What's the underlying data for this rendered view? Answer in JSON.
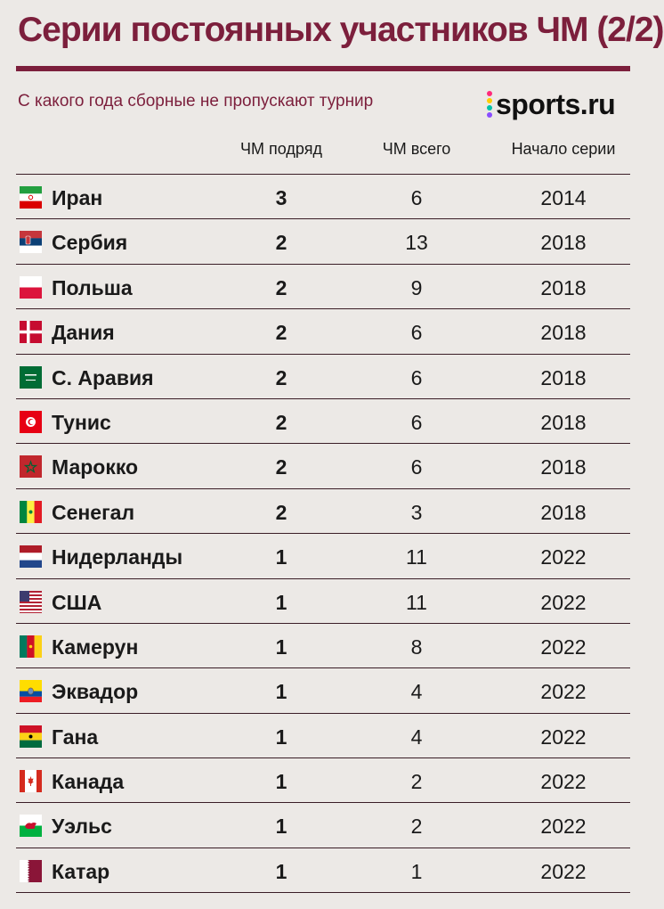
{
  "header": {
    "title": "Серии постоянных участников ЧМ (2/2)",
    "subtitle": "С какого года сборные не пропускают турнир",
    "brand": "sports.ru",
    "brand_dot_colors": [
      "#ff2a7a",
      "#ffcc00",
      "#00c2a8",
      "#8a4dff"
    ]
  },
  "columns": {
    "streak": "ЧМ подряд",
    "total": "ЧМ всего",
    "start": "Начало серии"
  },
  "colors": {
    "accent": "#7c1f3c",
    "background": "#ece9e6",
    "rule": "#3a1d26"
  },
  "rows": [
    {
      "country": "Иран",
      "flag_icon": "iran-flag-icon",
      "streak": "3",
      "total": "6",
      "start": "2014"
    },
    {
      "country": "Сербия",
      "flag_icon": "serbia-flag-icon",
      "streak": "2",
      "total": "13",
      "start": "2018"
    },
    {
      "country": "Польша",
      "flag_icon": "poland-flag-icon",
      "streak": "2",
      "total": "9",
      "start": "2018"
    },
    {
      "country": "Дания",
      "flag_icon": "denmark-flag-icon",
      "streak": "2",
      "total": "6",
      "start": "2018"
    },
    {
      "country": "С. Аравия",
      "flag_icon": "saudi-arabia-flag-icon",
      "streak": "2",
      "total": "6",
      "start": "2018"
    },
    {
      "country": "Тунис",
      "flag_icon": "tunisia-flag-icon",
      "streak": "2",
      "total": "6",
      "start": "2018"
    },
    {
      "country": "Марокко",
      "flag_icon": "morocco-flag-icon",
      "streak": "2",
      "total": "6",
      "start": "2018"
    },
    {
      "country": "Сенегал",
      "flag_icon": "senegal-flag-icon",
      "streak": "2",
      "total": "3",
      "start": "2018"
    },
    {
      "country": "Нидерланды",
      "flag_icon": "netherlands-flag-icon",
      "streak": "1",
      "total": "11",
      "start": "2022"
    },
    {
      "country": "США",
      "flag_icon": "usa-flag-icon",
      "streak": "1",
      "total": "11",
      "start": "2022"
    },
    {
      "country": "Камерун",
      "flag_icon": "cameroon-flag-icon",
      "streak": "1",
      "total": "8",
      "start": "2022"
    },
    {
      "country": "Эквадор",
      "flag_icon": "ecuador-flag-icon",
      "streak": "1",
      "total": "4",
      "start": "2022"
    },
    {
      "country": "Гана",
      "flag_icon": "ghana-flag-icon",
      "streak": "1",
      "total": "4",
      "start": "2022"
    },
    {
      "country": "Канада",
      "flag_icon": "canada-flag-icon",
      "streak": "1",
      "total": "2",
      "start": "2022"
    },
    {
      "country": "Уэльс",
      "flag_icon": "wales-flag-icon",
      "streak": "1",
      "total": "2",
      "start": "2022"
    },
    {
      "country": "Катар",
      "flag_icon": "qatar-flag-icon",
      "streak": "1",
      "total": "1",
      "start": "2022"
    }
  ]
}
